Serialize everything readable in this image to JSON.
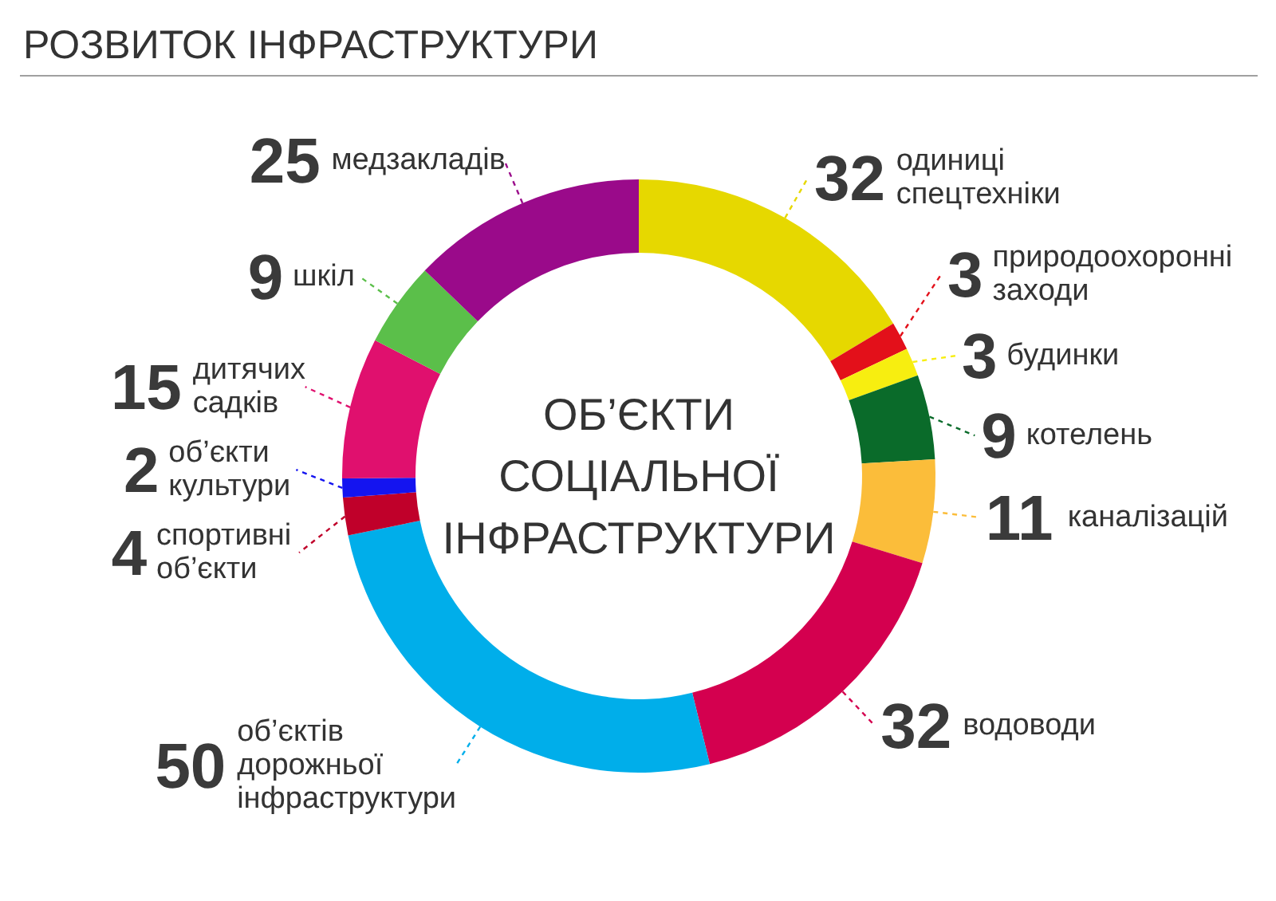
{
  "chart_data": {
    "type": "donut",
    "title": "РОЗВИТОК ІНФРАСТРУКТУРИ",
    "categories": [
      "одиниці\nспецтехніки",
      "природоохоронні\nзаходи",
      "будинки",
      "котелень",
      "каналізацій",
      "водоводи",
      "об’єктів\nдорожньої\nінфраструктури",
      "спортивні\nоб’єкти",
      "об’єкти\nкультури",
      "дитячих\nсадків",
      "шкіл",
      "медзакладів"
    ],
    "values": [
      32,
      3,
      3,
      9,
      11,
      32,
      50,
      4,
      2,
      15,
      9,
      25
    ],
    "colors": [
      "#e6d800",
      "#e3101a",
      "#f7ee10",
      "#0a6b2a",
      "#fbbd3a",
      "#d4004f",
      "#00aeea",
      "#c0002a",
      "#1414f0",
      "#e0106e",
      "#5bbf4a",
      "#9a0a8a"
    ],
    "data_labels": true,
    "annotations": [
      "ОБ’ЄКТИ\nСОЦІАЛЬНОЇ\nІНФРАСТРУКТУРИ"
    ]
  }
}
